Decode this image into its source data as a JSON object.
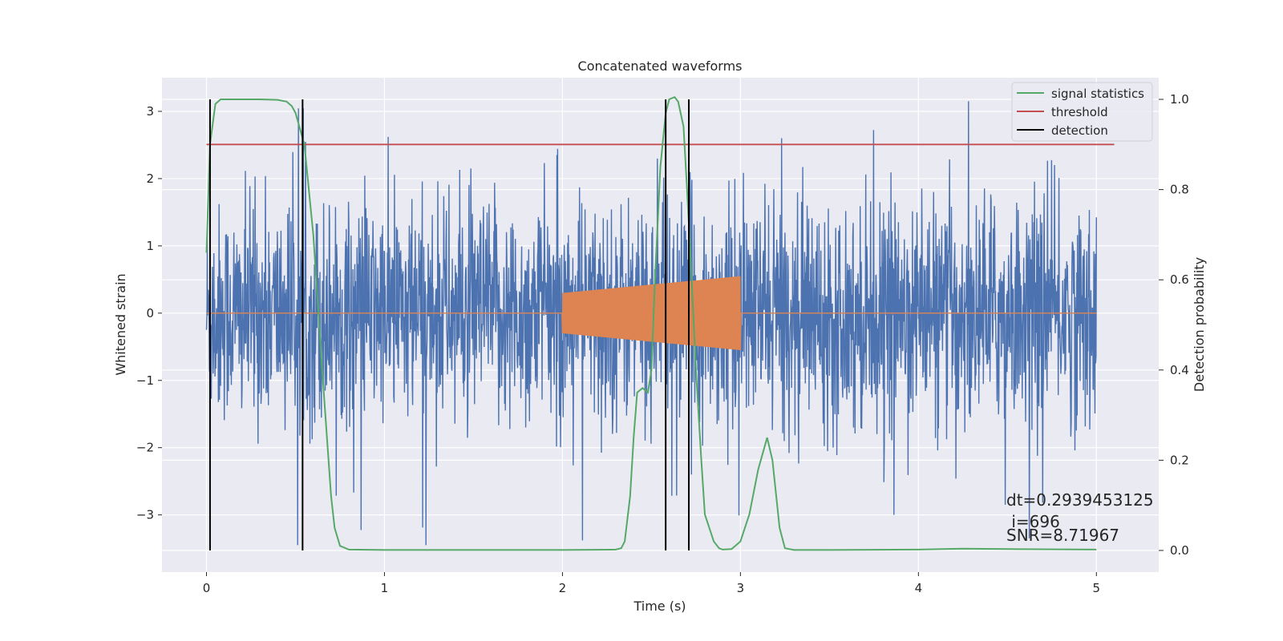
{
  "chart_data": {
    "type": "line",
    "title": "Concatenated waveforms",
    "xlabel": "Time (s)",
    "ylabel_left": "Whitened strain",
    "ylabel_right": "Detection probability",
    "xlim": [
      -0.25,
      5.35
    ],
    "ylim_left": [
      -3.85,
      3.5
    ],
    "ylim_right": [
      -0.048,
      1.048
    ],
    "x_ticks": [
      0,
      1,
      2,
      3,
      4,
      5
    ],
    "y_ticks_left": [
      -3,
      -2,
      -1,
      0,
      1,
      2,
      3
    ],
    "y_tick_labels_left": [
      "−3",
      "−2",
      "−1",
      "0",
      "1",
      "2",
      "3"
    ],
    "y_ticks_right": [
      0.0,
      0.2,
      0.4,
      0.6,
      0.8,
      1.0
    ],
    "y_tick_labels_right": [
      "0.0",
      "0.2",
      "0.4",
      "0.6",
      "0.8",
      "1.0"
    ],
    "grid": true,
    "legend_position": "top-right",
    "legend": [
      {
        "label": "signal statistics",
        "color": "#55a868"
      },
      {
        "label": "threshold",
        "color": "#c44e52"
      },
      {
        "label": "detection",
        "color": "#000000"
      }
    ],
    "series": [
      {
        "role": "noise",
        "color": "#4c72b0",
        "axis": "left",
        "x_range": [
          0,
          5
        ],
        "envelope_typical": 1.3,
        "peak_max": 3.15,
        "peak_min": -3.45
      },
      {
        "role": "injected waveform",
        "color": "#dd8452",
        "axis": "left",
        "x_range": [
          0,
          5
        ],
        "chirp_start": 2.0,
        "chirp_end": 3.0,
        "amp_start": 0.3,
        "amp_end": 0.55
      },
      {
        "name": "signal statistics",
        "color": "#55a868",
        "axis": "right",
        "x": [
          0.0,
          0.02,
          0.05,
          0.08,
          0.1,
          0.2,
          0.3,
          0.4,
          0.45,
          0.48,
          0.5,
          0.55,
          0.6,
          0.65,
          0.7,
          0.72,
          0.75,
          0.8,
          1.0,
          1.5,
          2.0,
          2.3,
          2.33,
          2.35,
          2.38,
          2.4,
          2.42,
          2.45,
          2.48,
          2.5,
          2.52,
          2.55,
          2.58,
          2.6,
          2.63,
          2.65,
          2.68,
          2.7,
          2.72,
          2.75,
          2.78,
          2.8,
          2.85,
          2.88,
          2.9,
          2.95,
          3.0,
          3.05,
          3.1,
          3.15,
          3.18,
          3.22,
          3.25,
          3.3,
          3.5,
          4.0,
          4.25,
          4.5,
          5.0
        ],
        "values": [
          0.66,
          0.9,
          0.99,
          1.0,
          1.0,
          1.0,
          1.0,
          0.999,
          0.995,
          0.985,
          0.97,
          0.9,
          0.7,
          0.4,
          0.12,
          0.05,
          0.01,
          0.002,
          0.001,
          0.001,
          0.001,
          0.002,
          0.005,
          0.02,
          0.12,
          0.25,
          0.35,
          0.36,
          0.35,
          0.4,
          0.6,
          0.85,
          0.97,
          1.0,
          1.005,
          0.995,
          0.94,
          0.8,
          0.65,
          0.4,
          0.2,
          0.08,
          0.02,
          0.005,
          0.002,
          0.003,
          0.02,
          0.08,
          0.18,
          0.25,
          0.2,
          0.05,
          0.005,
          0.001,
          0.001,
          0.002,
          0.004,
          0.003,
          0.002
        ]
      },
      {
        "name": "threshold",
        "color": "#c44e52",
        "axis": "right",
        "x": [
          0,
          5.1
        ],
        "values": [
          0.9,
          0.9
        ]
      },
      {
        "name": "detection",
        "color": "#000000",
        "axis": "right",
        "x_positions": [
          0.02,
          0.54,
          2.58,
          2.71
        ],
        "range": [
          0.0,
          1.0
        ]
      }
    ],
    "annotations": [
      {
        "text": "dt=0.2939453125",
        "x": 4.5,
        "y": 0.098
      },
      {
        "text": " i=696",
        "x": 4.5,
        "y": 0.052
      },
      {
        "text": "SNR=8.71967",
        "x": 4.5,
        "y": 0.011
      }
    ]
  }
}
